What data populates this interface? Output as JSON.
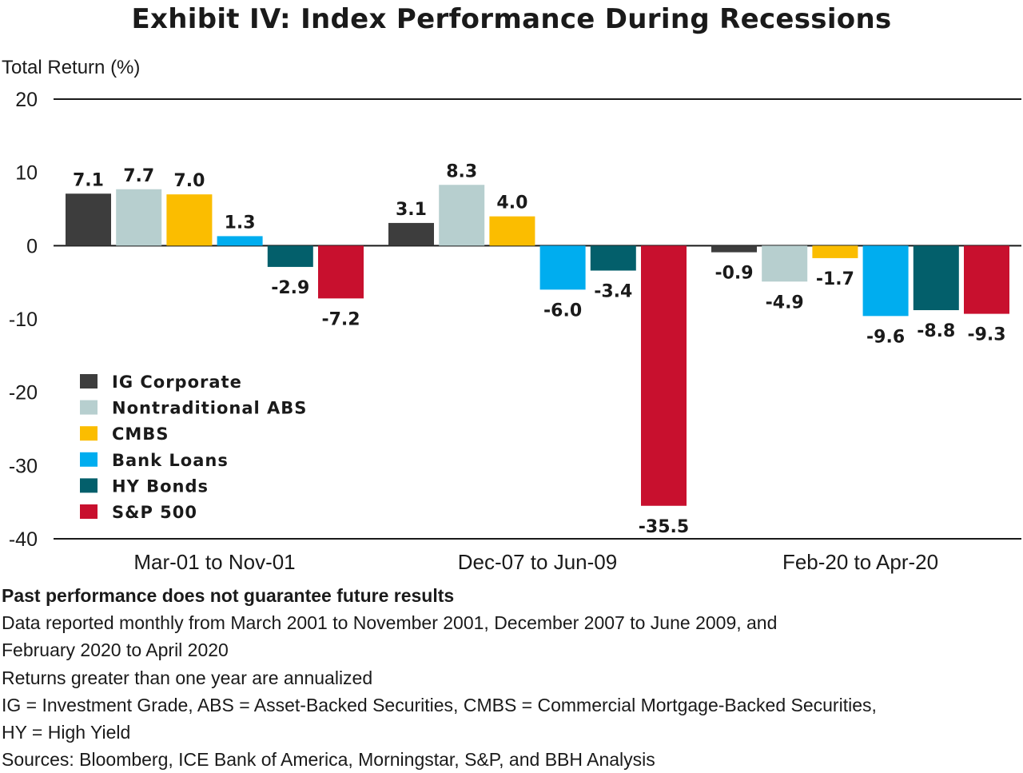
{
  "title": "Exhibit IV: Index Performance During Recessions",
  "chart_data": {
    "type": "bar",
    "title": "Exhibit IV: Index Performance During Recessions",
    "ylabel": "Total Return (%)",
    "xlabel": "",
    "ylim": [
      -40,
      20
    ],
    "yticks": [
      "20",
      "10",
      "0",
      "-10",
      "-20",
      "-30",
      "-40"
    ],
    "ytick_values": [
      20,
      10,
      0,
      -10,
      -20,
      -30,
      -40
    ],
    "grid": false,
    "legend_position": "left, middle of plot",
    "categories": [
      "Mar-01 to Nov-01",
      "Dec-07 to Jun-09",
      "Feb-20 to Apr-20"
    ],
    "series": [
      {
        "name": "IG Corporate",
        "color": "#3d3d3d",
        "values": [
          7.1,
          3.1,
          -0.9
        ],
        "labels": [
          "7.1",
          "3.1",
          "-0.9"
        ]
      },
      {
        "name": "Nontraditional ABS",
        "color": "#b7cfcf",
        "values": [
          7.7,
          8.3,
          -4.9
        ],
        "labels": [
          "7.7",
          "8.3",
          "-4.9"
        ]
      },
      {
        "name": "CMBS",
        "color": "#fbbd00",
        "values": [
          7.0,
          4.0,
          -1.7
        ],
        "labels": [
          "7.0",
          "4.0",
          "-1.7"
        ]
      },
      {
        "name": "Bank Loans",
        "color": "#00adef",
        "values": [
          1.3,
          -6.0,
          -9.6
        ],
        "labels": [
          "1.3",
          "-6.0",
          "-9.6"
        ]
      },
      {
        "name": "HY Bonds",
        "color": "#035f6b",
        "values": [
          -2.9,
          -3.4,
          -8.8
        ],
        "labels": [
          "-2.9",
          "-3.4",
          "-8.8"
        ]
      },
      {
        "name": "S&P 500",
        "color": "#c8102e",
        "values": [
          -7.2,
          -35.5,
          -9.3
        ],
        "labels": [
          "-7.2",
          "-35.5",
          "-9.3"
        ]
      }
    ]
  },
  "notes": {
    "disclaimer": "Past performance does not guarantee future results",
    "line1": "Data reported monthly from March 2001 to November 2001, December 2007 to June 2009, and",
    "line2": "February 2020 to April 2020",
    "line3": "Returns greater than one year are annualized",
    "line4": "IG = Investment Grade, ABS = Asset-Backed Securities, CMBS = Commercial Mortgage-Backed Securities,",
    "line5": "HY = High Yield",
    "line6": "Sources: Bloomberg, ICE Bank of America, Morningstar, S&P, and BBH Analysis"
  }
}
